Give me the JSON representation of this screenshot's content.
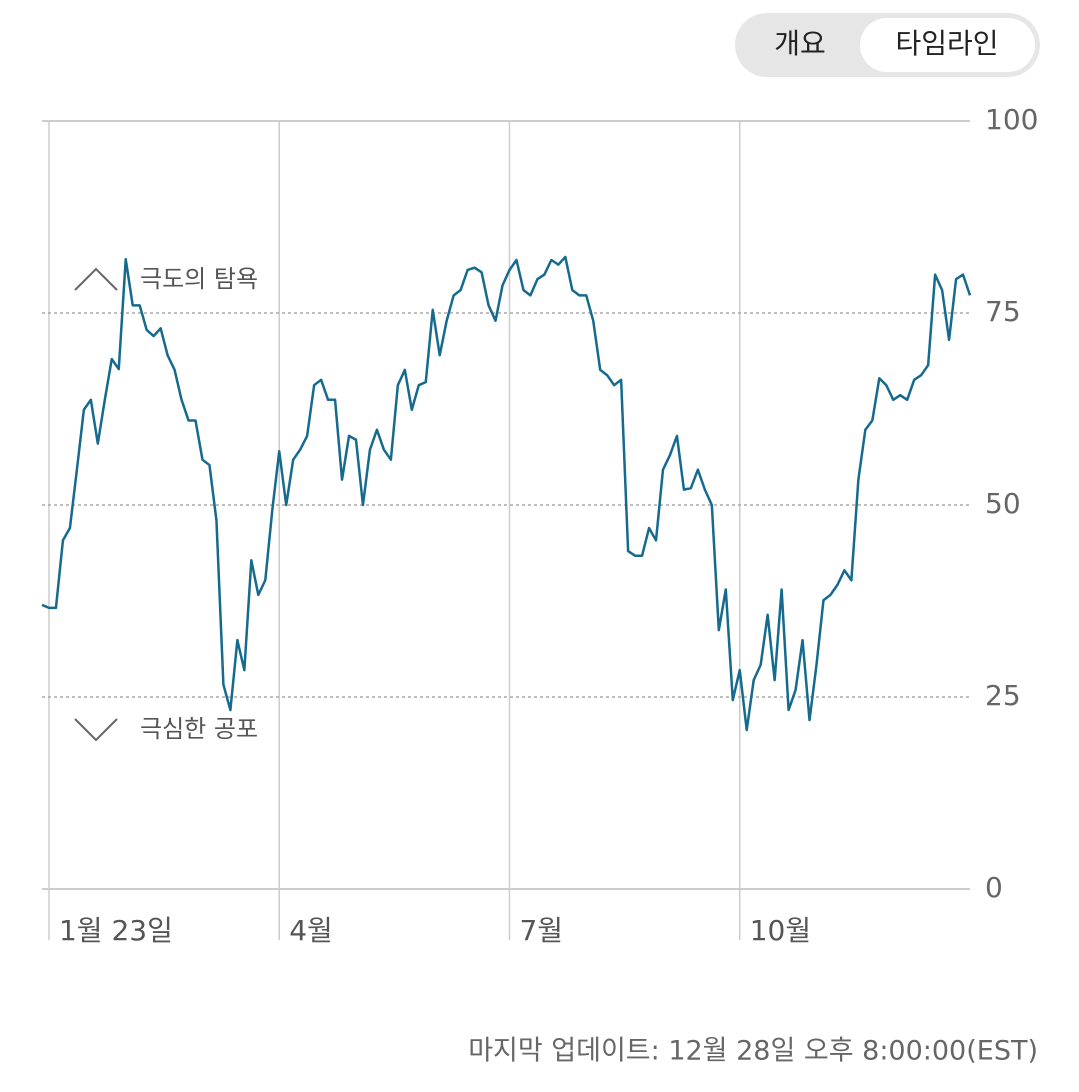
{
  "controls": {
    "tabs": [
      "개요",
      "타임라인"
    ],
    "selected": 1
  },
  "chart_data": {
    "type": "line",
    "categories": [
      null,
      "1월 23일",
      null,
      null,
      null,
      null,
      null,
      null,
      null,
      null,
      null,
      null,
      null,
      null,
      null,
      null,
      null,
      null,
      null,
      null,
      null,
      null,
      null,
      null,
      null,
      null,
      null,
      null,
      null,
      null,
      null,
      null,
      null,
      null,
      "4월",
      null,
      null,
      null,
      null,
      null,
      null,
      null,
      null,
      null,
      null,
      null,
      null,
      null,
      null,
      null,
      null,
      null,
      null,
      null,
      null,
      null,
      null,
      null,
      null,
      null,
      null,
      null,
      null,
      null,
      null,
      null,
      null,
      "7월",
      null,
      null,
      null,
      null,
      null,
      null,
      null,
      null,
      null,
      null,
      null,
      null,
      null,
      null,
      null,
      null,
      null,
      null,
      null,
      null,
      null,
      null,
      null,
      null,
      null,
      null,
      null,
      null,
      null,
      null,
      null,
      null,
      "10월",
      null,
      null,
      null,
      null,
      null,
      null,
      null,
      null,
      null,
      null,
      null,
      null,
      null,
      null,
      null,
      null,
      null,
      null,
      null,
      null,
      null,
      null,
      null,
      null,
      null,
      null,
      null,
      null,
      null,
      null,
      null,
      null,
      null
    ],
    "series": [
      {
        "color": "#156a8e",
        "values": [
          37,
          36.6,
          36.6,
          45.4,
          47,
          54.6,
          62.4,
          63.7,
          58,
          63.7,
          69,
          67.7,
          82,
          76,
          76,
          72.8,
          72,
          73,
          69.5,
          67.6,
          63.7,
          61,
          61,
          55.9,
          55.2,
          48,
          26.6,
          23.3,
          32.4,
          28.5,
          42.8,
          38.3,
          40.2,
          49.3,
          57,
          50,
          55.9,
          57.2,
          59,
          65.6,
          66.3,
          63.7,
          63.7,
          53.3,
          59,
          58.5,
          50,
          57.2,
          59.8,
          57.2,
          55.9,
          65.6,
          67.6,
          62.4,
          65.6,
          66,
          75.4,
          69.5,
          74,
          77.3,
          78,
          80.6,
          80.9,
          80.3,
          76,
          74,
          78.6,
          80.6,
          81.9,
          78,
          77.3,
          79.4,
          80,
          81.9,
          81.3,
          82.3,
          78,
          77.3,
          77.3,
          74,
          67.6,
          66.9,
          65.6,
          66.3,
          44,
          43.4,
          43.4,
          47,
          45.4,
          54.6,
          56.5,
          59,
          52,
          52.2,
          54.6,
          52,
          50,
          33.7,
          39,
          24.6,
          28.5,
          20.7,
          27.2,
          29.2,
          35.7,
          27.2,
          39,
          23.3,
          25.9,
          32.4,
          22,
          29.2,
          37.6,
          38.3,
          39.6,
          41.5,
          40.2,
          53.3,
          59.8,
          61,
          66.5,
          65.6,
          63.7,
          64.3,
          63.7,
          66.3,
          66.9,
          68.2,
          80,
          78,
          71.5,
          79.4,
          80,
          77.3
        ]
      }
    ],
    "ylim": [
      0,
      100
    ],
    "yticks": [
      0,
      25,
      50,
      75,
      100
    ],
    "grid": true,
    "annotations": [
      {
        "text": "극도의 탐욕",
        "value": 75,
        "direction": "up"
      },
      {
        "text": "극심한 공포",
        "value": 25,
        "direction": "down"
      }
    ],
    "note": "마지막 업데이트: 12월 28일 오후 8:00:00(EST)"
  }
}
